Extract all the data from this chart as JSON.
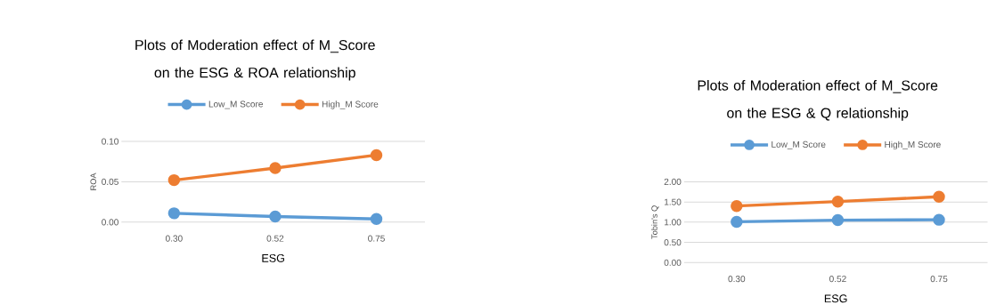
{
  "chart_data": [
    {
      "type": "line",
      "title": "Plots of Moderation effect of  M_Score on the ESG & ROA relationship",
      "xlabel": "ESG",
      "ylabel": "ROA",
      "categories": [
        "0.30",
        "0.52",
        "0.75"
      ],
      "series": [
        {
          "name": "Low_M Score",
          "color": "#5b9bd5",
          "values": [
            0.011,
            0.007,
            0.004
          ]
        },
        {
          "name": "High_M Score",
          "color": "#ed7d31",
          "values": [
            0.052,
            0.067,
            0.083
          ]
        }
      ],
      "ylim": [
        0,
        0.1
      ],
      "yticks": [
        {
          "value": 0,
          "label": "0.00"
        },
        {
          "value": 0.05,
          "label": "0.05"
        },
        {
          "value": 0.1,
          "label": "0.10"
        }
      ],
      "grid": "y",
      "legend": "top",
      "marker": "circle"
    },
    {
      "type": "line",
      "title": "Plots of Moderation effect of  M_Score on the ESG & Q relationship",
      "xlabel": "ESG",
      "ylabel": "Tobin's Q",
      "categories": [
        "0.30",
        "0.52",
        "0.75"
      ],
      "series": [
        {
          "name": "Low_M Score",
          "color": "#5b9bd5",
          "values": [
            1.01,
            1.05,
            1.06
          ]
        },
        {
          "name": "High_M Score",
          "color": "#ed7d31",
          "values": [
            1.4,
            1.51,
            1.63
          ]
        }
      ],
      "ylim": [
        0,
        2
      ],
      "yticks": [
        {
          "value": 0,
          "label": "0.00"
        },
        {
          "value": 0.5,
          "label": "0.50"
        },
        {
          "value": 1,
          "label": "1.00"
        },
        {
          "value": 1.5,
          "label": "1.50"
        },
        {
          "value": 2,
          "label": "2.00"
        }
      ],
      "grid": "y",
      "legend": "top",
      "marker": "circle"
    }
  ]
}
